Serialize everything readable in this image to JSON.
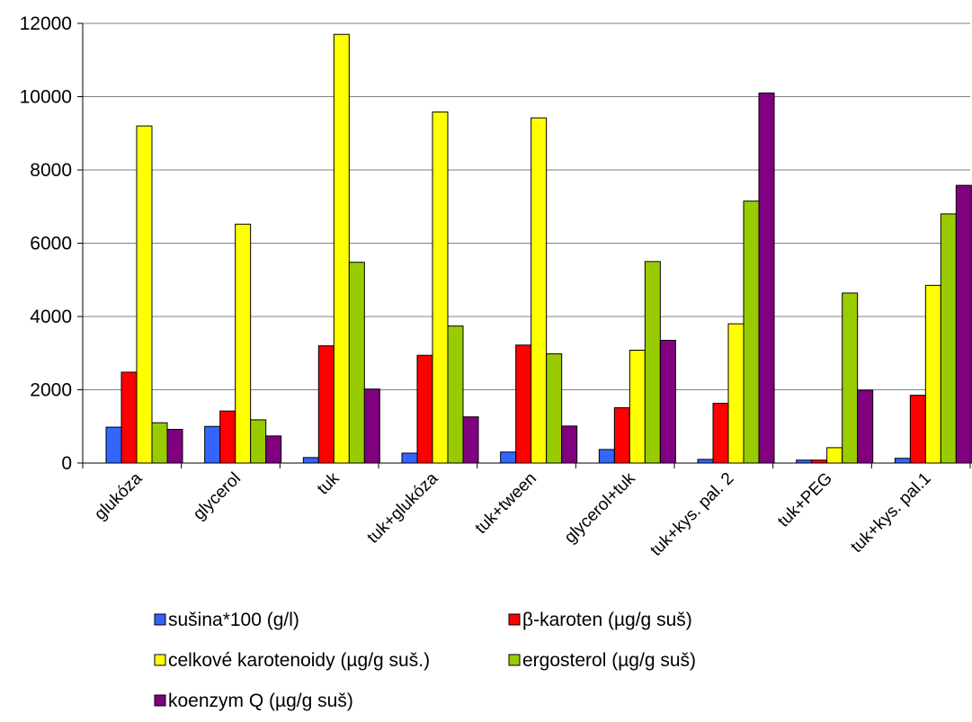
{
  "chart_data": {
    "type": "bar",
    "title": "",
    "xlabel": "",
    "ylabel": "",
    "ylim": [
      0,
      12000
    ],
    "yticks": [
      0,
      2000,
      4000,
      6000,
      8000,
      10000,
      12000
    ],
    "grid": true,
    "legend_position": "bottom",
    "categories": [
      "glukóza",
      "glycerol",
      "tuk",
      "tuk+glukóza",
      "tuk+tween",
      "glycerol+tuk",
      "tuk+kys. pal. 2",
      "tuk+PEG",
      "tuk+kys. pal.1"
    ],
    "series": [
      {
        "name": "sušina*100 (g/l)",
        "color": "#3366ff",
        "values": [
          980,
          1000,
          150,
          270,
          300,
          370,
          100,
          80,
          130
        ]
      },
      {
        "name": "β-karoten (µg/g suš)",
        "color": "#ff0000",
        "values": [
          2480,
          1420,
          3200,
          2940,
          3220,
          1510,
          1630,
          80,
          1850
        ]
      },
      {
        "name": "celkové karotenoidy (µg/g suš.)",
        "color": "#ffff00",
        "values": [
          9200,
          6520,
          11700,
          9580,
          9420,
          3080,
          3800,
          420,
          4850
        ]
      },
      {
        "name": "ergosterol (µg/g suš)",
        "color": "#99cc00",
        "values": [
          1100,
          1180,
          5480,
          3740,
          2980,
          5500,
          7150,
          4640,
          6800
        ]
      },
      {
        "name": "koenzym Q (µg/g suš)",
        "color": "#800080",
        "values": [
          920,
          740,
          2020,
          1260,
          1010,
          3350,
          10100,
          1990,
          7580
        ]
      }
    ]
  }
}
